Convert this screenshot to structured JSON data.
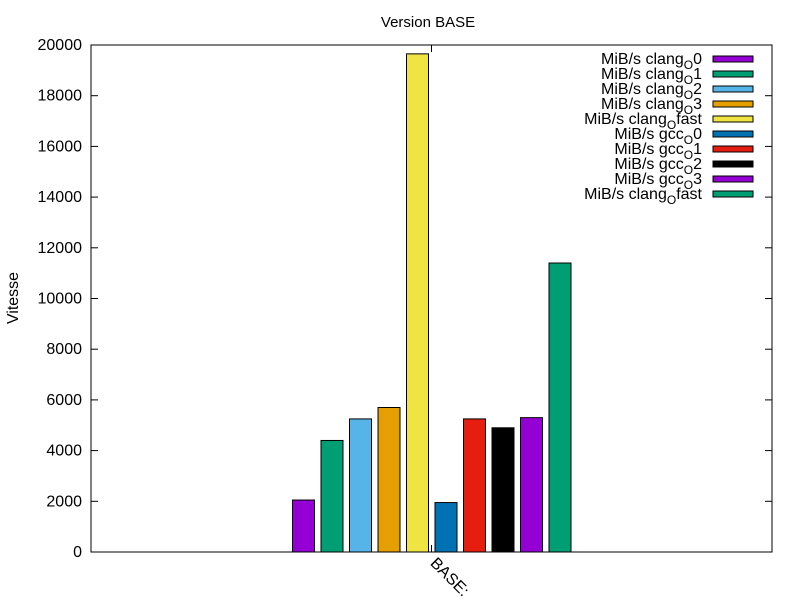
{
  "chart_data": {
    "type": "bar",
    "title": "Version BASE",
    "xlabel": "",
    "ylabel": "Vitesse",
    "categories": [
      "BASE:"
    ],
    "ylim": [
      0,
      20000
    ],
    "yticks": [
      0,
      2000,
      4000,
      6000,
      8000,
      10000,
      12000,
      14000,
      16000,
      18000,
      20000
    ],
    "grid": false,
    "legend_position": "top-right",
    "series": [
      {
        "name_main": "MiB/s clang",
        "name_sub": "O",
        "name_tail": "0",
        "values": [
          2050
        ],
        "color": "#9400d3"
      },
      {
        "name_main": "MiB/s clang",
        "name_sub": "O",
        "name_tail": "1",
        "values": [
          4400
        ],
        "color": "#009e73"
      },
      {
        "name_main": "MiB/s clang",
        "name_sub": "O",
        "name_tail": "2",
        "values": [
          5250
        ],
        "color": "#56b4e9"
      },
      {
        "name_main": "MiB/s clang",
        "name_sub": "O",
        "name_tail": "3",
        "values": [
          5700
        ],
        "color": "#e69f00"
      },
      {
        "name_main": "MiB/s clang",
        "name_sub": "O",
        "name_tail": "fast",
        "values": [
          19650
        ],
        "color": "#f0e442"
      },
      {
        "name_main": "MiB/s gcc",
        "name_sub": "O",
        "name_tail": "0",
        "values": [
          1950
        ],
        "color": "#0072b2"
      },
      {
        "name_main": "MiB/s gcc",
        "name_sub": "O",
        "name_tail": "1",
        "values": [
          5250
        ],
        "color": "#e51e10"
      },
      {
        "name_main": "MiB/s gcc",
        "name_sub": "O",
        "name_tail": "2",
        "values": [
          4900
        ],
        "color": "#000000"
      },
      {
        "name_main": "MiB/s gcc",
        "name_sub": "O",
        "name_tail": "3",
        "values": [
          5300
        ],
        "color": "#9400d3"
      },
      {
        "name_main": "MiB/s clang",
        "name_sub": "O",
        "name_tail": "fast",
        "values": [
          11400
        ],
        "color": "#009e73"
      }
    ]
  }
}
